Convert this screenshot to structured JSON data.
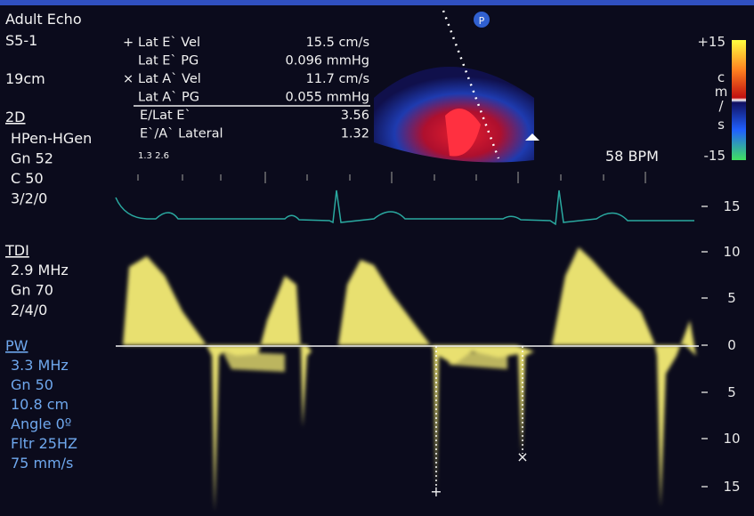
{
  "header": {
    "title": "Adult Echo",
    "probe": "S5-1",
    "depth": "19cm"
  },
  "settings_2d": {
    "label": "2D",
    "lines": [
      "HPen-HGen",
      "Gn 52",
      "C 50",
      "3/2/0"
    ]
  },
  "settings_tdi": {
    "label": "TDI",
    "lines": [
      "2.9 MHz",
      "Gn 70",
      "2/4/0"
    ]
  },
  "settings_pw": {
    "label": "PW",
    "lines": [
      "3.3 MHz",
      "Gn 50",
      "10.8 cm",
      "Angle 0º",
      "Fltr 25HZ",
      "75 mm/s"
    ]
  },
  "measurements": {
    "rows": [
      [
        "+",
        "Lat E` Vel",
        "15.5 cm/s"
      ],
      [
        "",
        "Lat E` PG",
        "0.096 mmHg"
      ],
      [
        "×",
        "Lat A` Vel",
        "11.7 cm/s"
      ],
      [
        "",
        "Lat A` PG",
        "0.055 mmHg"
      ],
      [
        "",
        "E/Lat E`",
        "3.56"
      ],
      [
        "",
        "E`/A` Lateral",
        "1.32"
      ]
    ],
    "footnote": "1.3 2.6"
  },
  "color_scale": {
    "max": "+15",
    "min": "-15",
    "unit": [
      "c",
      "m",
      "/",
      "s"
    ]
  },
  "heart_rate": "58 BPM",
  "sector_icon": "P",
  "velocity_scale": [
    "15",
    "10",
    "5",
    "0",
    "5",
    "10",
    "15"
  ],
  "doppler_markers": [
    "+",
    "×"
  ]
}
